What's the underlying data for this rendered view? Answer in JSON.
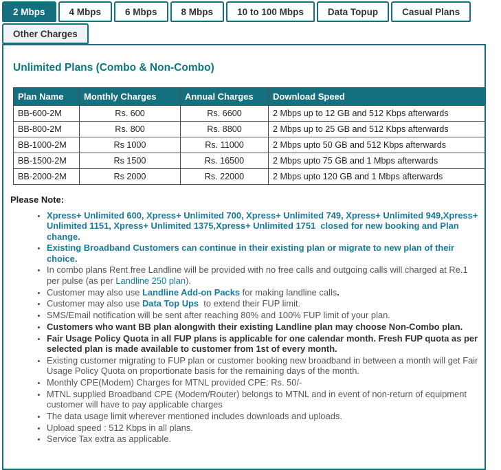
{
  "colors": {
    "teal_accent": "#14707e",
    "title_teal": "#0d7883",
    "link_teal": "#1a7a9d",
    "body_text": "#555555",
    "dark_text": "#333333"
  },
  "tabs": {
    "active": "2 Mbps",
    "row1": [
      "2 Mbps",
      "4 Mbps",
      "6 Mbps",
      "8 Mbps",
      "10 to 100 Mbps",
      "Data Topup",
      "Casual Plans"
    ],
    "row2": [
      "Other Charges"
    ]
  },
  "section": {
    "title": "Unlimited Plans (Combo & Non-Combo)"
  },
  "table": {
    "columns": [
      "Plan Name",
      "Monthly Charges",
      "Annual Charges",
      "Download Speed"
    ],
    "rows": [
      [
        "BB-600-2M",
        "Rs. 600",
        "Rs. 6600",
        "2 Mbps up to 12 GB and 512 Kbps afterwards"
      ],
      [
        "BB-800-2M",
        "Rs. 800",
        "Rs. 8800",
        "2 Mbps up to 25 GB and 512 Kbps afterwards"
      ],
      [
        "BB-1000-2M",
        "Rs 1000",
        "Rs. 11000",
        "2 Mbps upto 50 GB and 512 Kbps afterwards"
      ],
      [
        "BB-1500-2M",
        "Rs 1500",
        "Rs. 16500",
        "2 Mbps upto 75 GB and 1 Mbps afterwards"
      ],
      [
        "BB-2000-2M",
        "Rs 2000",
        "Rs. 22000",
        "2 Mbps upto 120 GB and 1 Mbps afterwards"
      ]
    ]
  },
  "notes": {
    "heading": "Please Note:",
    "items": [
      {
        "runs": [
          {
            "style": "teal-bold",
            "text": "Xpress+ Unlimited 600, Xpress+ Unlimited 700, Xpress+ Unlimited 749, Xpress+ Unlimited 949,Xpress+ Unlimited 1151, Xpress+ Unlimited 1375,Xpress+ Unlimited 1751  closed for new booking and Plan change."
          }
        ]
      },
      {
        "runs": [
          {
            "style": "teal-bold",
            "text": "Existing Broadband Customers can continue in their existing plan or migrate to new plan of their choice."
          }
        ]
      },
      {
        "runs": [
          {
            "style": "normal",
            "text": "In combo plans Rent free Landline will be provided with no free calls and outgoing calls will charged at Re.1 per pulse (as per "
          },
          {
            "style": "link",
            "text": "Landline 250 plan"
          },
          {
            "style": "normal",
            "text": ")."
          }
        ]
      },
      {
        "runs": [
          {
            "style": "normal",
            "text": "Customer may also use "
          },
          {
            "style": "link-bold",
            "text": "Landline Add-on Packs"
          },
          {
            "style": "normal",
            "text": " for making landline calls"
          },
          {
            "style": "bold",
            "text": "."
          }
        ]
      },
      {
        "runs": [
          {
            "style": "normal",
            "text": "Customer may also use "
          },
          {
            "style": "link-bold",
            "text": "Data Top Ups"
          },
          {
            "style": "normal",
            "text": "  to extend their FUP limit."
          }
        ]
      },
      {
        "runs": [
          {
            "style": "normal",
            "text": "SMS/Email notification will be sent after reaching 80% and 100% FUP limit of your plan."
          }
        ]
      },
      {
        "runs": [
          {
            "style": "bold",
            "text": "Customers who want BB plan alongwith their existing Landline plan may choose Non-Combo plan."
          }
        ]
      },
      {
        "runs": [
          {
            "style": "bold",
            "text": "Fair Usage Policy Quota in all FUP plans is applicable for one calendar month. Fresh FUP quota as per selected plan is made available to customer from 1st of every month."
          }
        ]
      },
      {
        "runs": [
          {
            "style": "normal",
            "text": "Existing customer migrating to FUP plan or customer booking new broadband in between a month will get Fair Usage Policy Quota on proportionate basis for the remaining days of the month."
          }
        ]
      },
      {
        "runs": [
          {
            "style": "normal",
            "text": "Monthly CPE(Modem) Charges for MTNL provided CPE: Rs. 50/-"
          }
        ]
      },
      {
        "runs": [
          {
            "style": "normal",
            "text": "MTNL supplied Broadband CPE (Modem/Router) belongs to MTNL and in event of non-return of equipment customer will have to pay applicable charges"
          }
        ]
      },
      {
        "runs": [
          {
            "style": "normal",
            "text": "The data usage limit wherever mentioned includes downloads and uploads."
          }
        ]
      },
      {
        "runs": [
          {
            "style": "normal",
            "text": "Upload speed : 512 Kbps in all plans."
          }
        ]
      },
      {
        "runs": [
          {
            "style": "normal",
            "text": "Service Tax extra as applicable."
          }
        ]
      }
    ]
  }
}
